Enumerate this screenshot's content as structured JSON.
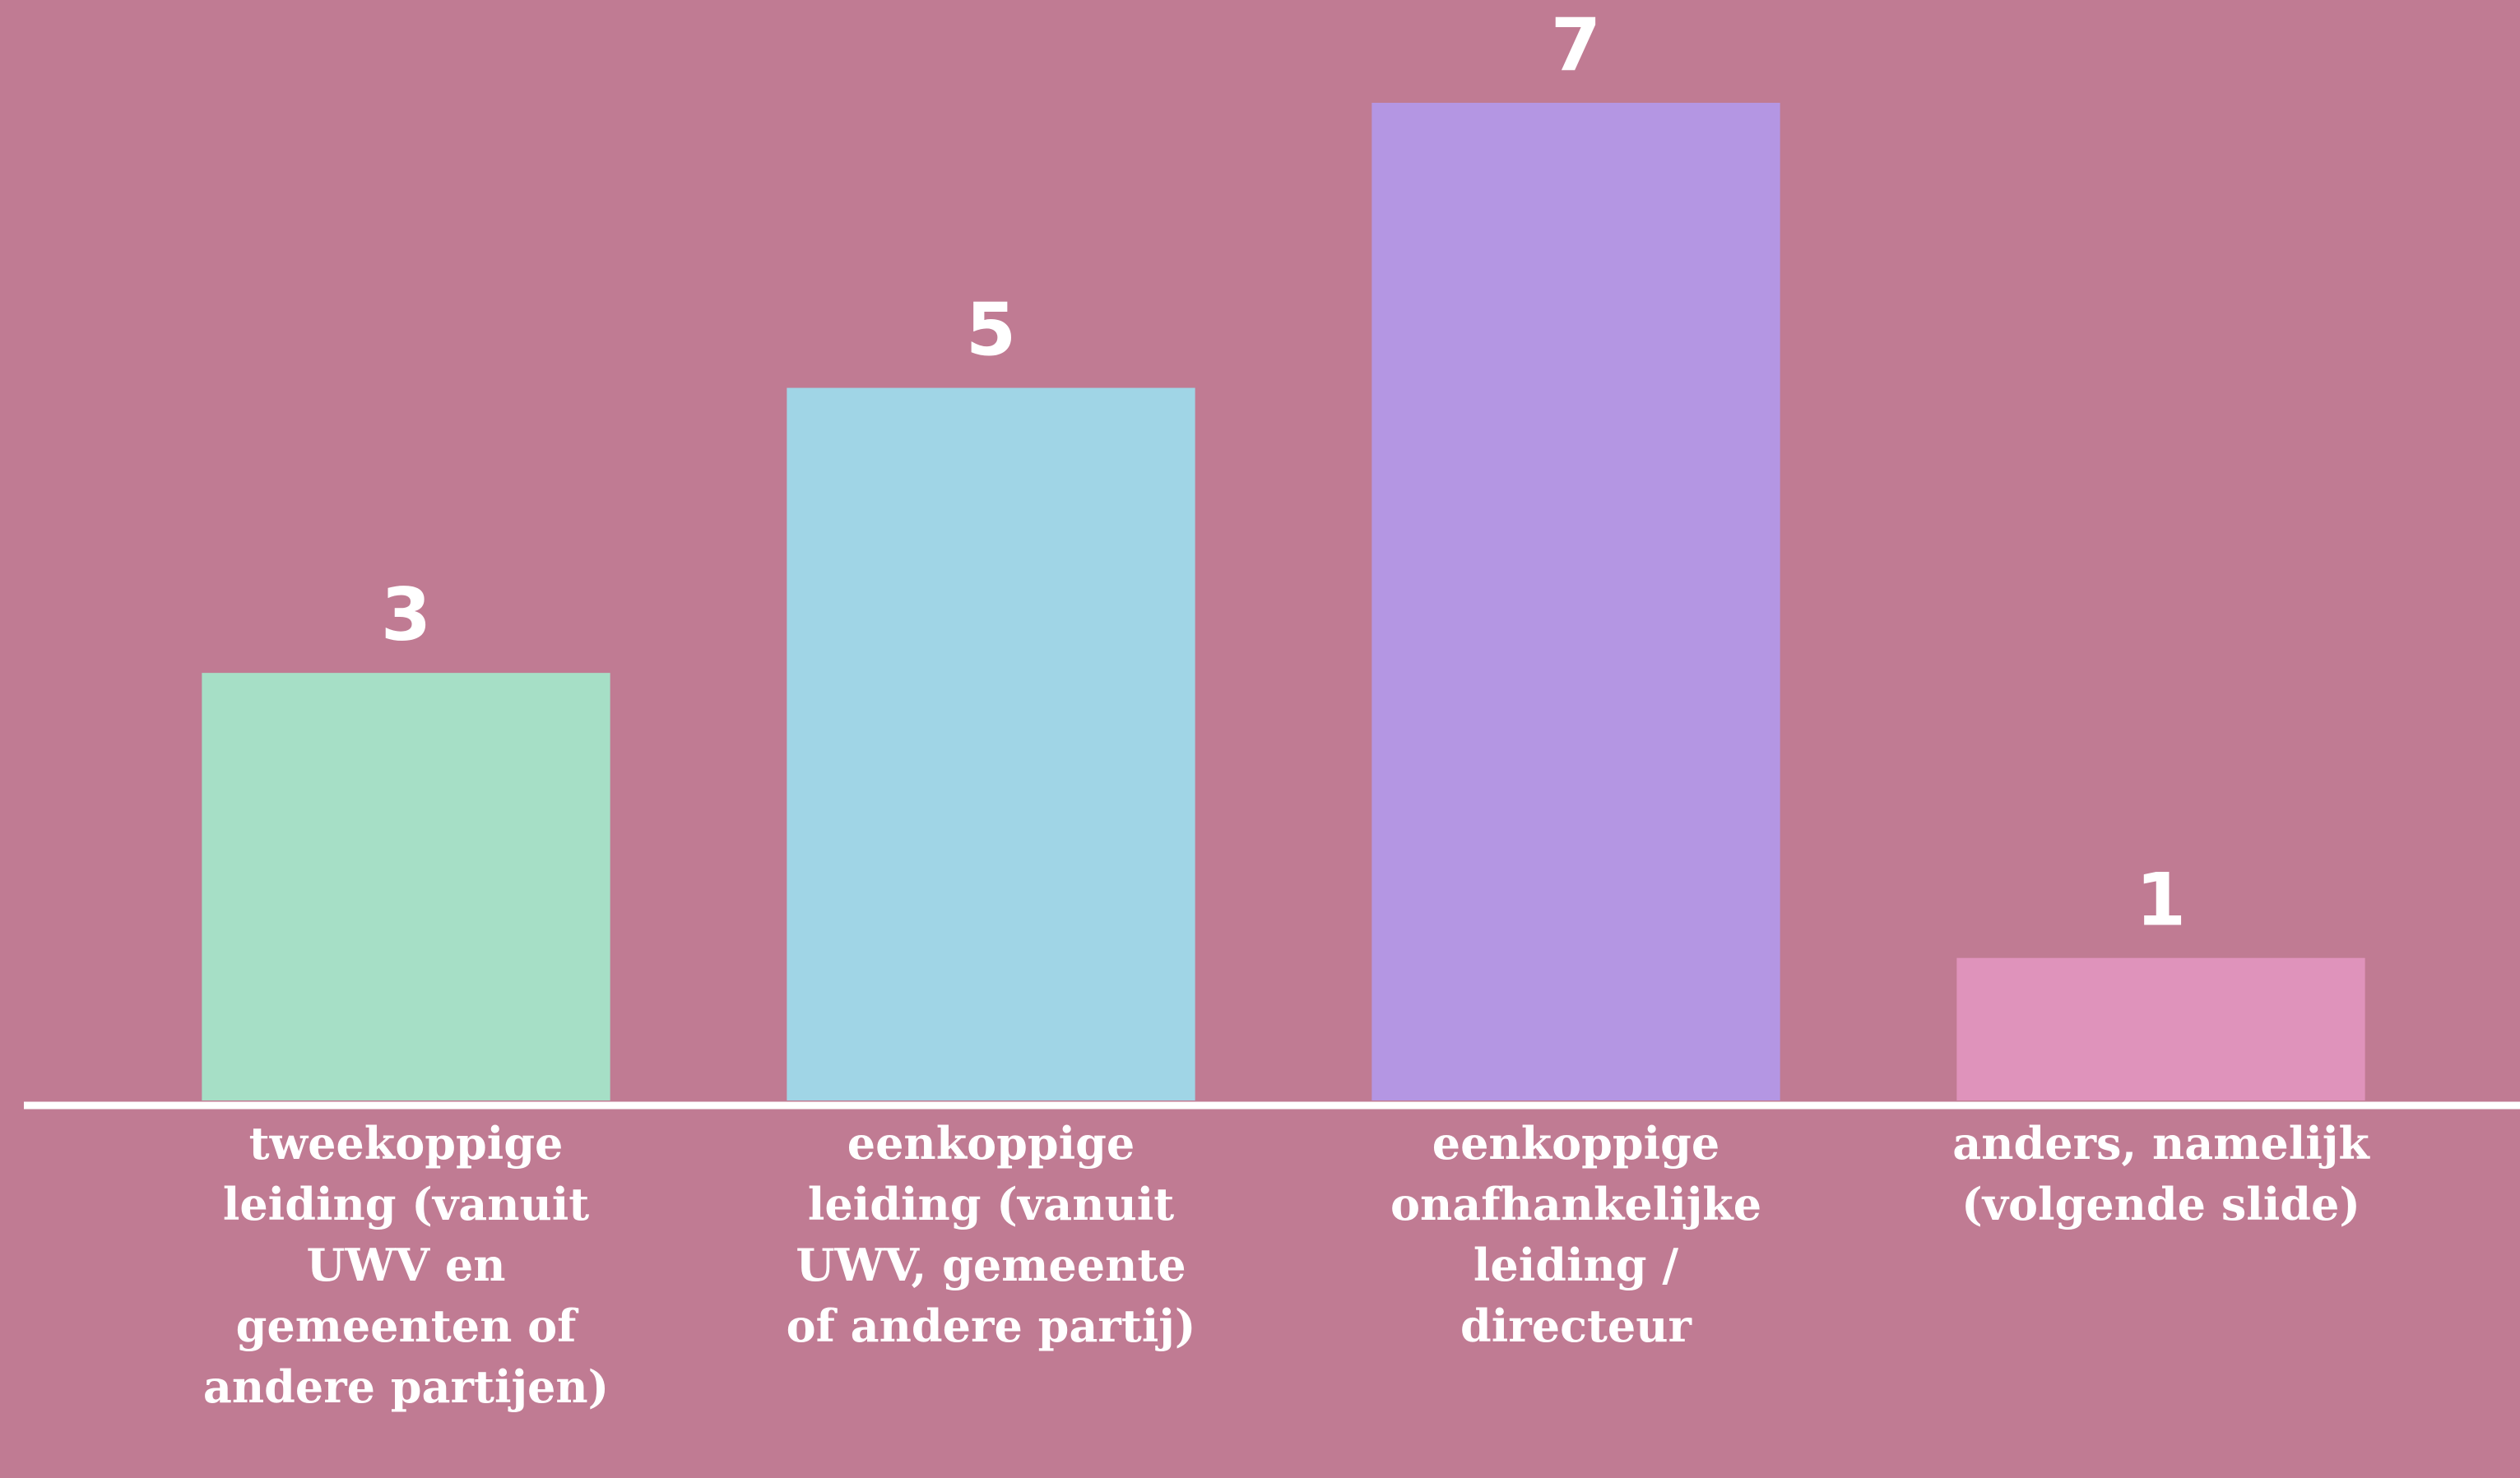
{
  "chart_data": {
    "type": "bar",
    "categories": [
      "tweekoppige leiding (vanuit UWV en gemeenten of andere partijen)",
      "eenkoppige leiding (vanuit UWV, gemeente of andere partij)",
      "eenkoppige onafhankelijke leiding / directeur",
      "anders, namelijk (volgende slide)"
    ],
    "values": [
      3,
      5,
      7,
      1
    ],
    "colors": [
      "#a6dfc6",
      "#a0d5e6",
      "#b496e3",
      "#df93bb"
    ],
    "ylim": [
      0,
      7
    ]
  }
}
